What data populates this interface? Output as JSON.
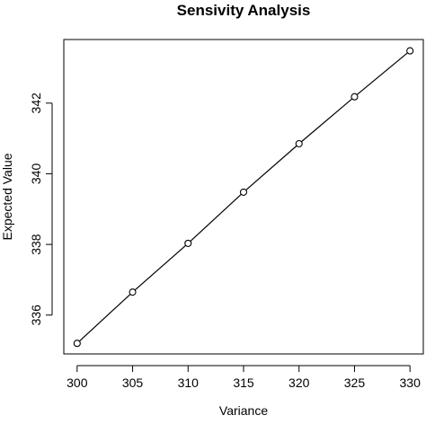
{
  "chart_data": {
    "type": "line",
    "title": "Sensivity Analysis",
    "xlabel": "Variance",
    "ylabel": "Expected Value",
    "x": [
      300,
      305,
      310,
      315,
      320,
      325,
      330
    ],
    "series": [
      {
        "values": [
          335.2,
          336.65,
          338.03,
          339.48,
          340.85,
          342.18,
          343.48
        ]
      }
    ],
    "xlim": [
      298.8,
      331.2
    ],
    "ylim": [
      334.9,
      343.8
    ],
    "x_ticks": [
      300,
      305,
      310,
      315,
      320,
      325,
      330
    ],
    "y_ticks": [
      336,
      338,
      340,
      342
    ],
    "x_tick_labels": [
      "300",
      "305",
      "310",
      "315",
      "320",
      "325",
      "330"
    ],
    "y_tick_labels": [
      "336",
      "338",
      "340",
      "342"
    ],
    "marker": "open-circle",
    "line_color": "#000000",
    "grid": false,
    "legend": "none",
    "box": true
  }
}
